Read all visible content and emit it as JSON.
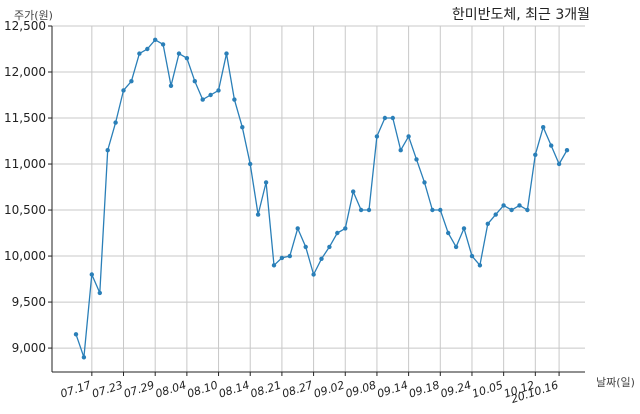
{
  "chart_data": {
    "type": "line",
    "title": "한미반도체, 최근 3개월",
    "ylabel": "주가(원)",
    "xlabel": "날짜(일)",
    "ylim": [
      8740,
      12500
    ],
    "yticks": [
      9000,
      9500,
      10000,
      10500,
      11000,
      11500,
      12000,
      12500
    ],
    "ytick_labels": [
      "9,000",
      "9,500",
      "10,000",
      "10,500",
      "11,000",
      "11,500",
      "12,000",
      "12,500"
    ],
    "xticks": [
      {
        "index": 2,
        "label": "07.17"
      },
      {
        "index": 6,
        "label": "07.23"
      },
      {
        "index": 10,
        "label": "07.29"
      },
      {
        "index": 14,
        "label": "08.04"
      },
      {
        "index": 18,
        "label": "08.10"
      },
      {
        "index": 22,
        "label": "08.14"
      },
      {
        "index": 26,
        "label": "08.21"
      },
      {
        "index": 30,
        "label": "08.27"
      },
      {
        "index": 34,
        "label": "09.02"
      },
      {
        "index": 38,
        "label": "09.08"
      },
      {
        "index": 42,
        "label": "09.14"
      },
      {
        "index": 46,
        "label": "09.18"
      },
      {
        "index": 50,
        "label": "09.24"
      },
      {
        "index": 54,
        "label": "10.05"
      },
      {
        "index": 58,
        "label": "10.12"
      },
      {
        "index": 61,
        "label": "20.10.16"
      }
    ],
    "grid": true,
    "series": [
      {
        "color": "#2a7fb8",
        "values": [
          9150,
          8900,
          9800,
          9600,
          11150,
          11450,
          11800,
          11900,
          12200,
          12250,
          12350,
          12300,
          11850,
          12200,
          12150,
          11900,
          11700,
          11750,
          11800,
          12200,
          11700,
          11400,
          11000,
          10450,
          10800,
          9900,
          9980,
          10000,
          10300,
          10100,
          9800,
          9970,
          10100,
          10250,
          10300,
          10700,
          10500,
          10500,
          11300,
          11500,
          11500,
          11150,
          11300,
          11050,
          10800,
          10500,
          10500,
          10250,
          10100,
          10300,
          10000,
          9900,
          10350,
          10450,
          10550,
          10500,
          10550,
          10500,
          11100,
          11400,
          11200,
          11000,
          11150
        ]
      }
    ]
  }
}
